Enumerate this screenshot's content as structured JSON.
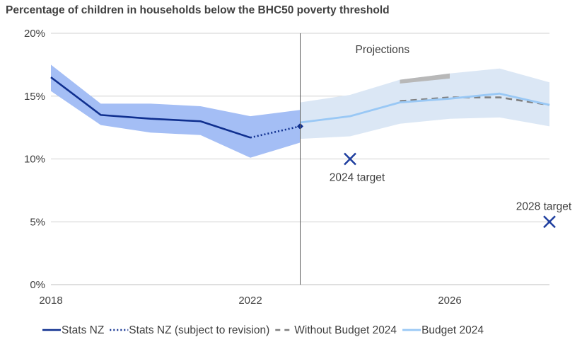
{
  "chart_data": {
    "type": "line",
    "title": "Percentage of children in households below the BHC50 poverty threshold",
    "xlabel": "",
    "ylabel": "",
    "xlim": [
      2018,
      2028
    ],
    "ylim": [
      0,
      20
    ],
    "x_ticks": [
      2018,
      2022,
      2026
    ],
    "y_ticks": [
      {
        "value": 0,
        "label": "0%"
      },
      {
        "value": 5,
        "label": "5%"
      },
      {
        "value": 10,
        "label": "10%"
      },
      {
        "value": 15,
        "label": "15%"
      },
      {
        "value": 20,
        "label": "20%"
      }
    ],
    "grid": "horizontal",
    "legend_position": "bottom",
    "colors": {
      "stats_nz": "#0f2f8f",
      "band_actual": "#a4bef5",
      "band_projection": "#dbe7f5",
      "budget_2024": "#99c8f5",
      "without_budget": "#7f7f7f",
      "without_budget_band": "#b8b8b8",
      "target_marker": "#1f3f9f",
      "divider": "#595959",
      "grid": "#d0d0d0"
    },
    "divider_x": 2023,
    "projections_label": "Projections",
    "series": [
      {
        "name": "Stats NZ",
        "style": "solid",
        "x": [
          2018,
          2019,
          2020,
          2021,
          2022
        ],
        "y": [
          16.5,
          13.5,
          13.2,
          13.0,
          11.7
        ]
      },
      {
        "name": "Stats NZ (subject to revision)",
        "style": "dotted",
        "x": [
          2022,
          2023
        ],
        "y": [
          11.7,
          12.6
        ]
      },
      {
        "name": "Without Budget 2024",
        "style": "dashed",
        "x": [
          2025,
          2026,
          2027,
          2028
        ],
        "y": [
          14.6,
          14.9,
          14.9,
          14.3
        ]
      },
      {
        "name": "Budget 2024",
        "style": "solid-light",
        "x": [
          2023,
          2024,
          2025,
          2026,
          2027,
          2028
        ],
        "y": [
          12.9,
          13.4,
          14.5,
          14.8,
          15.2,
          14.3
        ]
      }
    ],
    "confidence_band_actual": {
      "x": [
        2018,
        2019,
        2020,
        2021,
        2022,
        2023
      ],
      "upper": [
        17.5,
        14.4,
        14.4,
        14.2,
        13.4,
        13.9
      ],
      "lower": [
        15.4,
        12.7,
        12.1,
        11.9,
        10.1,
        11.3
      ]
    },
    "confidence_band_projection": {
      "x": [
        2023,
        2024,
        2025,
        2026,
        2027,
        2028
      ],
      "upper": [
        14.5,
        15.1,
        16.3,
        16.8,
        17.2,
        16.1
      ],
      "lower": [
        11.6,
        11.8,
        12.8,
        13.2,
        13.3,
        12.6
      ]
    },
    "without_budget_band": {
      "x": [
        2025,
        2026
      ],
      "upper": [
        16.3,
        16.8
      ],
      "lower": [
        16.0,
        16.4
      ]
    },
    "targets": [
      {
        "label": "2024 target",
        "x": 2024,
        "y": 10
      },
      {
        "label": "2028 target",
        "x": 2028,
        "y": 5
      }
    ]
  }
}
